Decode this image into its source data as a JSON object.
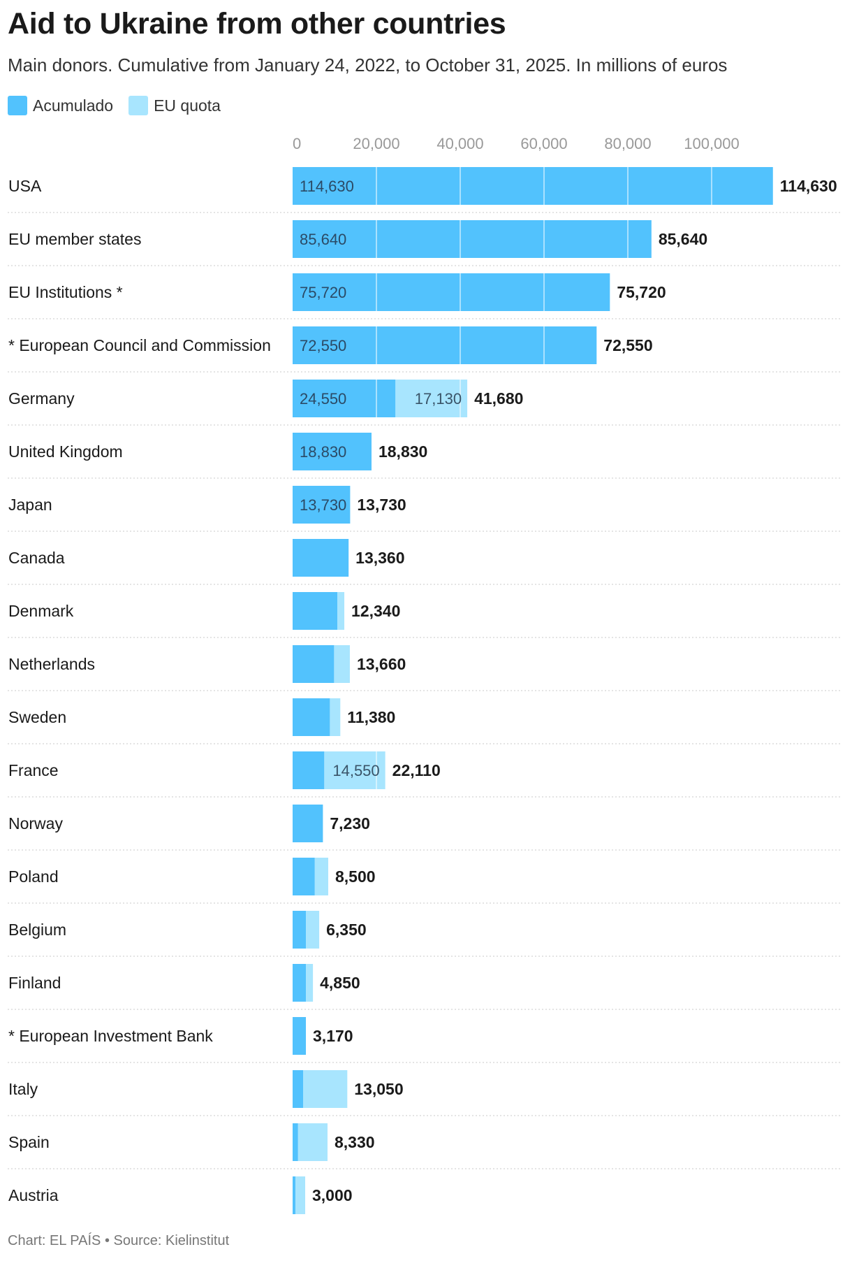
{
  "title": "Aid to Ukraine from other countries",
  "subtitle": "Main donors. Cumulative from January 24, 2022, to October 31, 2025. In millions of euros",
  "footer": "Chart: EL PAÍS • Source: Kielinstitut",
  "colors": {
    "accumulated": "#52c2fd",
    "eu_quota": "#a8e5fe",
    "gridline": "#ffffff",
    "separator": "#c8c8c8"
  },
  "legend": [
    {
      "name": "Acumulado",
      "color": "#52c2fd"
    },
    {
      "name": "EU quota",
      "color": "#a8e5fe"
    }
  ],
  "chart_data": {
    "type": "bar",
    "orientation": "horizontal",
    "stacked": true,
    "xlim": [
      0,
      114630
    ],
    "x_ticks": [
      "0",
      "20,000",
      "40,000",
      "60,000",
      "80,000",
      "100,000"
    ],
    "x_tick_values": [
      0,
      20000,
      40000,
      60000,
      80000,
      100000
    ],
    "categories": [
      "USA",
      "EU member states",
      "EU Institutions *",
      "* European Council and Commission",
      "Germany",
      "United Kingdom",
      "Japan",
      "Canada",
      "Denmark",
      "Netherlands",
      "Sweden",
      "France",
      "Norway",
      "Poland",
      "Belgium",
      "Finland",
      "* European Investment Bank",
      "Italy",
      "Spain",
      "Austria"
    ],
    "series": [
      {
        "name": "Acumulado",
        "values": [
          114630,
          85640,
          75720,
          72550,
          24550,
          18830,
          13730,
          13360,
          10700,
          9900,
          8900,
          7560,
          7230,
          5300,
          3200,
          3200,
          3170,
          2500,
          1300,
          700
        ]
      },
      {
        "name": "EU quota",
        "values": [
          0,
          0,
          0,
          0,
          17130,
          0,
          0,
          0,
          1640,
          3760,
          2480,
          14550,
          0,
          3200,
          3150,
          1650,
          0,
          10550,
          7030,
          2300
        ]
      }
    ],
    "totals": [
      "114,630",
      "85,640",
      "75,720",
      "72,550",
      "41,680",
      "18,830",
      "13,730",
      "13,360",
      "12,340",
      "13,660",
      "11,380",
      "22,110",
      "7,230",
      "8,500",
      "6,350",
      "4,850",
      "3,170",
      "13,050",
      "8,330",
      "3,000"
    ],
    "inner_labels_acc": [
      "114,630",
      "85,640",
      "75,720",
      "72,550",
      "24,550",
      "18,830",
      "13,730",
      "",
      "",
      "",
      "",
      "",
      "",
      "",
      "",
      "",
      "",
      "",
      "",
      ""
    ],
    "inner_labels_eu": [
      "",
      "",
      "",
      "",
      "17,130",
      "",
      "",
      "",
      "",
      "",
      "",
      "14,550",
      "",
      "",
      "",
      "",
      "",
      "",
      "",
      ""
    ]
  }
}
